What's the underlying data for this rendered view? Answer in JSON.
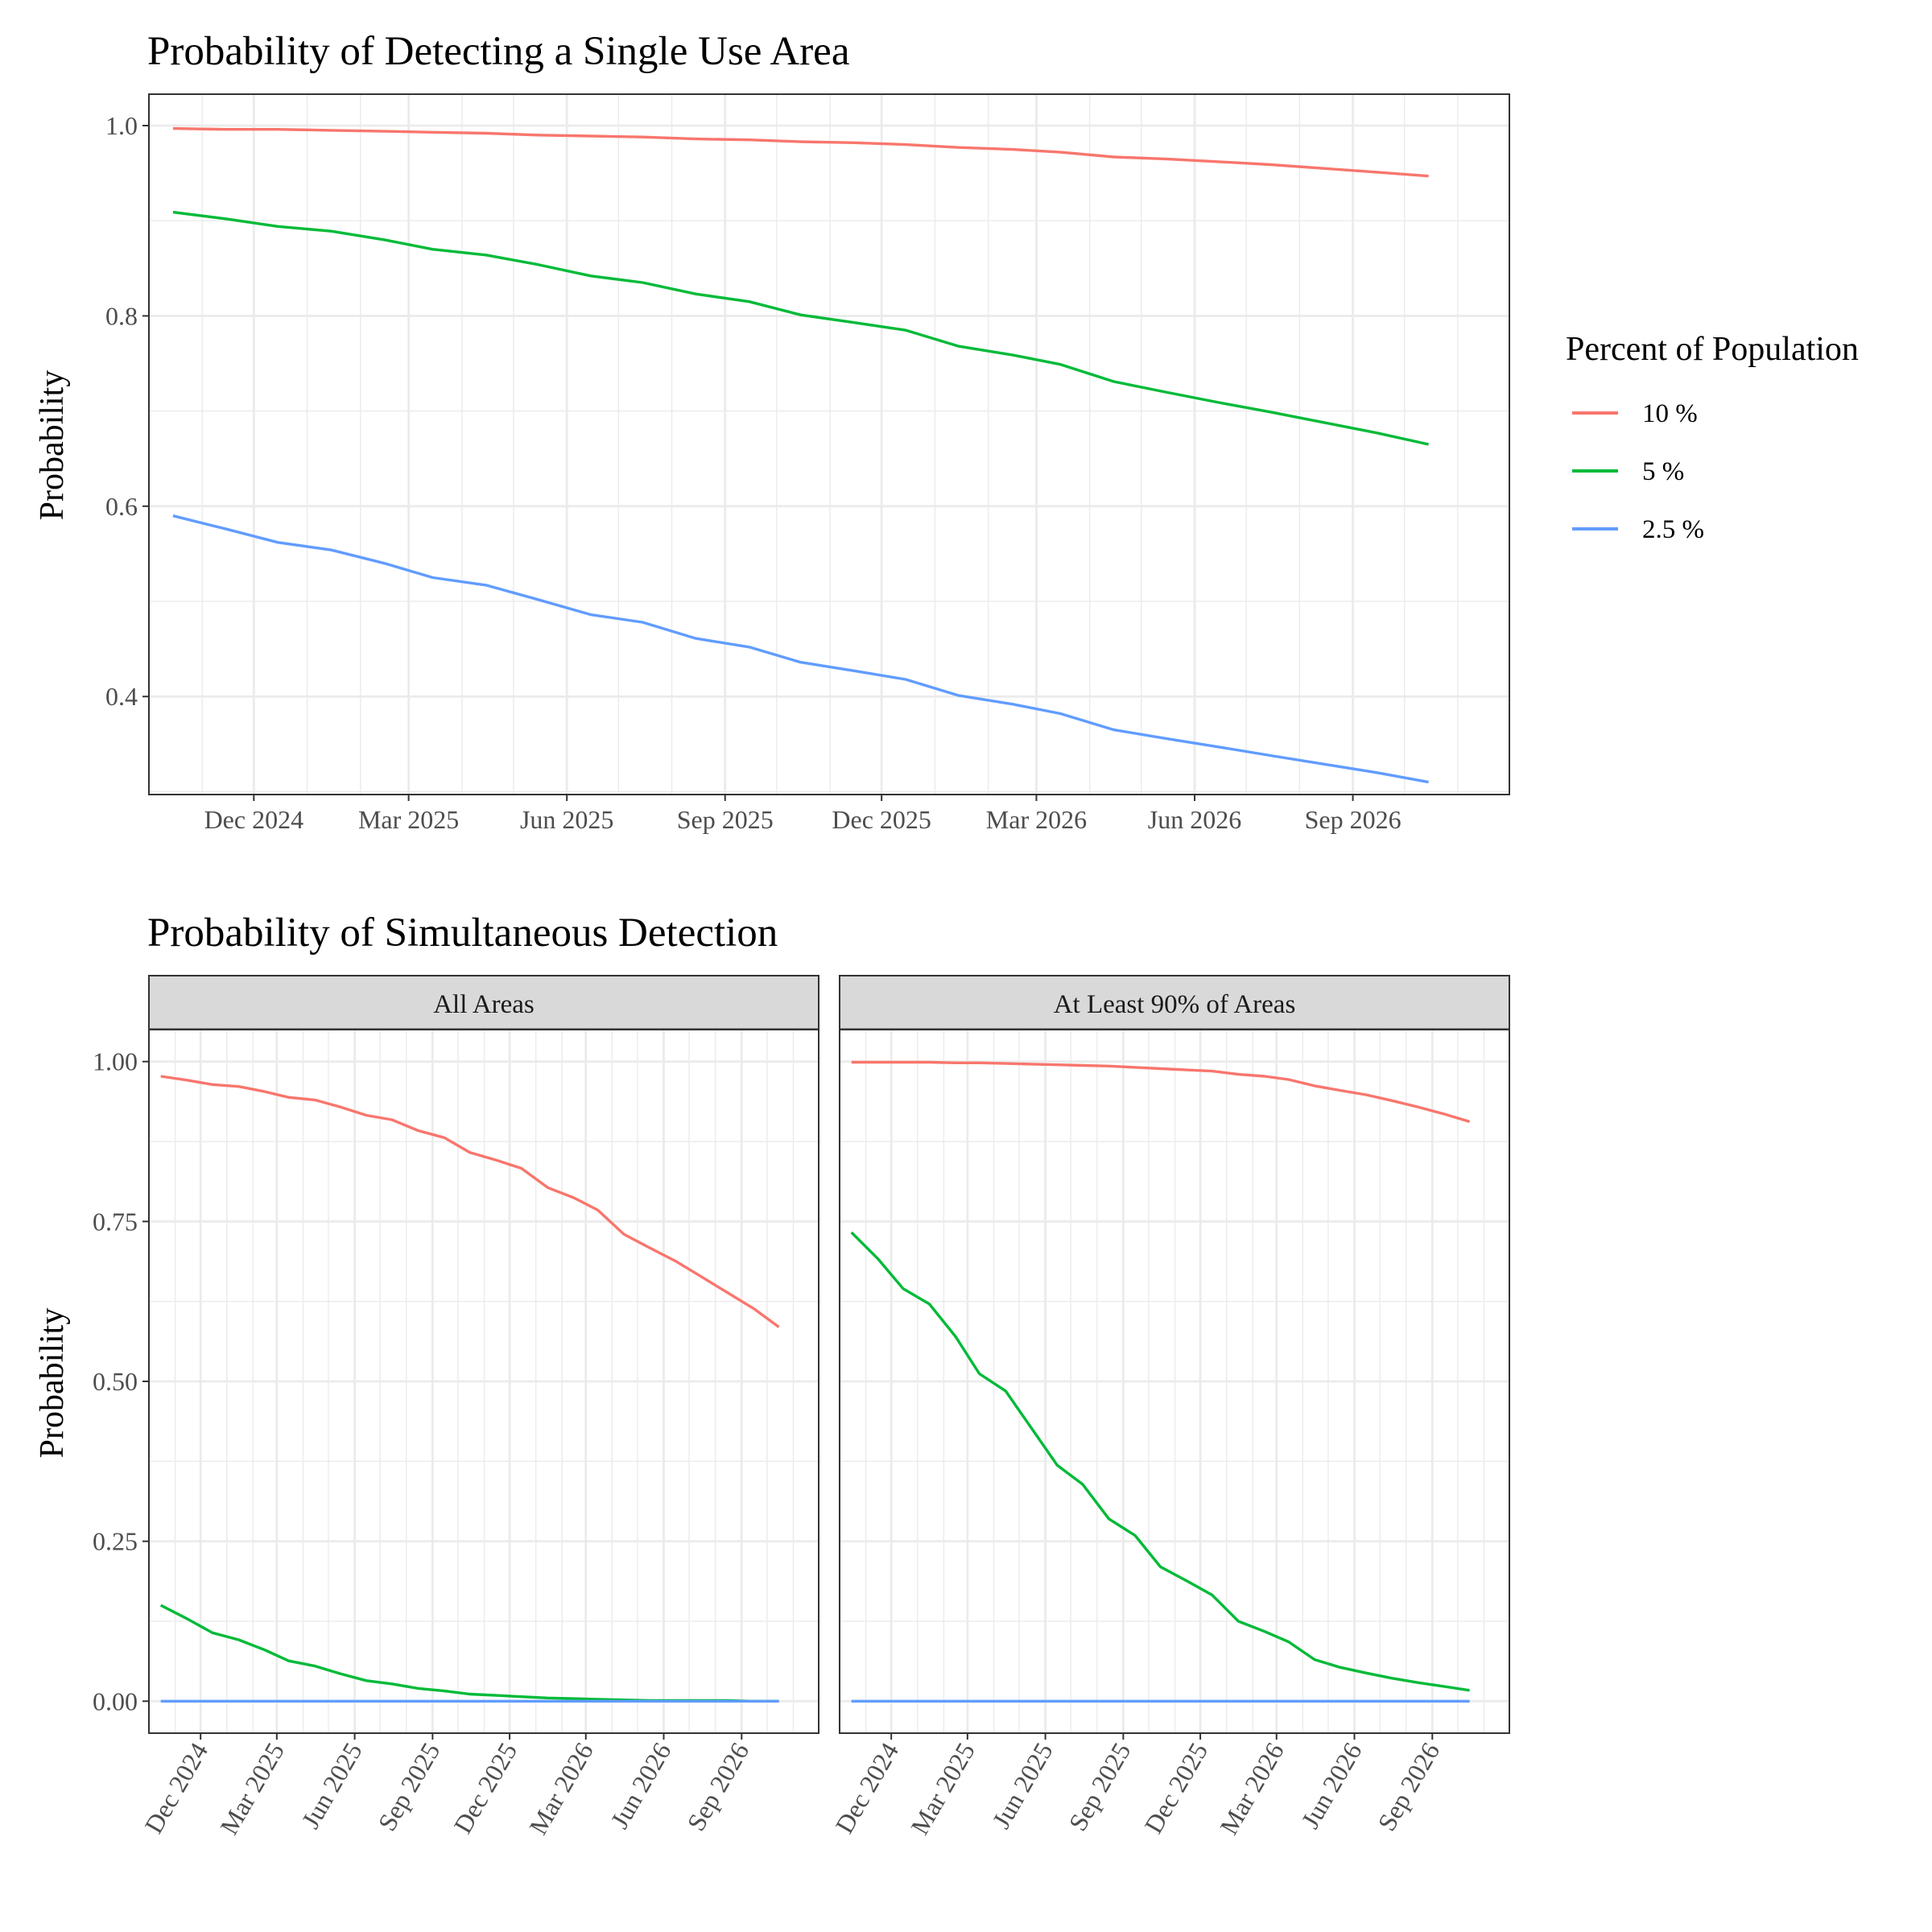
{
  "legend": {
    "title": "Percent of Population",
    "placement": "right",
    "entries": [
      {
        "label": "10 %",
        "color": "#F8766D"
      },
      {
        "label": "5 %",
        "color": "#00BA38"
      },
      {
        "label": "2.5 %",
        "color": "#619CFF"
      }
    ]
  },
  "chart_data": [
    {
      "type": "line",
      "title": "Probability of Detecting a Single Use Area",
      "xlabel": "",
      "ylabel": "Probability",
      "x_tick_labels": [
        "Dec 2024",
        "Mar 2025",
        "Jun 2025",
        "Sep 2025",
        "Dec 2025",
        "Mar 2026",
        "Jun 2026",
        "Sep 2026"
      ],
      "y_tick_labels": [
        "0.4",
        "0.6",
        "0.8",
        "1.0"
      ],
      "xlim": [
        "2024-10-01",
        "2026-12-01"
      ],
      "ylim": [
        0.297,
        1.033
      ],
      "grid": true,
      "x": [
        "2024-10-15",
        "2024-11-15",
        "2024-12-15",
        "2025-01-15",
        "2025-02-15",
        "2025-03-15",
        "2025-04-15",
        "2025-05-15",
        "2025-06-15",
        "2025-07-15",
        "2025-08-15",
        "2025-09-15",
        "2025-10-15",
        "2025-11-15",
        "2025-12-15",
        "2026-01-15",
        "2026-02-15",
        "2026-03-15",
        "2026-04-15",
        "2026-05-15",
        "2026-06-15",
        "2026-07-15",
        "2026-08-15",
        "2026-09-15",
        "2026-10-15"
      ],
      "series": [
        {
          "name": "10 %",
          "values": [
            0.997,
            0.996,
            0.996,
            0.995,
            0.994,
            0.993,
            0.992,
            0.99,
            0.989,
            0.988,
            0.986,
            0.985,
            0.983,
            0.982,
            0.98,
            0.977,
            0.975,
            0.972,
            0.967,
            0.965,
            0.962,
            0.959,
            0.955,
            0.951,
            0.947
          ]
        },
        {
          "name": "5 %",
          "values": [
            0.909,
            0.902,
            0.894,
            0.889,
            0.88,
            0.87,
            0.864,
            0.854,
            0.842,
            0.835,
            0.823,
            0.815,
            0.801,
            0.793,
            0.785,
            0.768,
            0.759,
            0.749,
            0.731,
            0.72,
            0.709,
            0.699,
            0.688,
            0.677,
            0.665
          ]
        },
        {
          "name": "2.5 %",
          "values": [
            0.59,
            0.576,
            0.562,
            0.554,
            0.54,
            0.525,
            0.517,
            0.502,
            0.486,
            0.478,
            0.461,
            0.452,
            0.436,
            0.427,
            0.418,
            0.401,
            0.392,
            0.382,
            0.365,
            0.356,
            0.347,
            0.338,
            0.329,
            0.32,
            0.31
          ]
        }
      ]
    },
    {
      "type": "line",
      "title": "Probability of Simultaneous Detection",
      "panel": "All Areas",
      "xlabel": "",
      "ylabel": "Probability",
      "x_tick_labels": [
        "Dec 2024",
        "Mar 2025",
        "Jun 2025",
        "Sep 2025",
        "Dec 2025",
        "Mar 2026",
        "Jun 2026",
        "Sep 2026"
      ],
      "y_tick_labels": [
        "0.00",
        "0.25",
        "0.50",
        "0.75",
        "1.00"
      ],
      "xlim": [
        "2024-10-01",
        "2026-12-01"
      ],
      "ylim": [
        -0.05,
        1.05
      ],
      "grid": true,
      "x": [
        "2024-10-15",
        "2024-11-15",
        "2024-12-15",
        "2025-01-15",
        "2025-02-15",
        "2025-03-15",
        "2025-04-15",
        "2025-05-15",
        "2025-06-15",
        "2025-07-15",
        "2025-08-15",
        "2025-09-15",
        "2025-10-15",
        "2025-11-15",
        "2025-12-15",
        "2026-01-15",
        "2026-02-15",
        "2026-03-15",
        "2026-04-15",
        "2026-05-15",
        "2026-06-15",
        "2026-07-15",
        "2026-08-15",
        "2026-09-15",
        "2026-10-15"
      ],
      "series": [
        {
          "name": "10 %",
          "values": [
            0.977,
            0.971,
            0.964,
            0.961,
            0.953,
            0.944,
            0.94,
            0.929,
            0.916,
            0.909,
            0.892,
            0.881,
            0.858,
            0.846,
            0.833,
            0.803,
            0.787,
            0.768,
            0.73,
            0.709,
            0.688,
            0.664,
            0.639,
            0.614,
            0.585
          ]
        },
        {
          "name": "5 %",
          "values": [
            0.15,
            0.129,
            0.107,
            0.096,
            0.08,
            0.063,
            0.055,
            0.043,
            0.032,
            0.027,
            0.02,
            0.016,
            0.011,
            0.009,
            0.007,
            0.005,
            0.004,
            0.003,
            0.002,
            0.001,
            0.001,
            0.001,
            0.001,
            0.0,
            0.0
          ]
        },
        {
          "name": "2.5 %",
          "values": [
            0,
            0,
            0,
            0,
            0,
            0,
            0,
            0,
            0,
            0,
            0,
            0,
            0,
            0,
            0,
            0,
            0,
            0,
            0,
            0,
            0,
            0,
            0,
            0,
            0
          ]
        }
      ]
    },
    {
      "type": "line",
      "title": "Probability of Simultaneous Detection",
      "panel": "At Least 90% of Areas",
      "xlabel": "",
      "ylabel": "Probability",
      "x_tick_labels": [
        "Dec 2024",
        "Mar 2025",
        "Jun 2025",
        "Sep 2025",
        "Dec 2025",
        "Mar 2026",
        "Jun 2026",
        "Sep 2026"
      ],
      "y_tick_labels": [
        "0.00",
        "0.25",
        "0.50",
        "0.75",
        "1.00"
      ],
      "xlim": [
        "2024-10-01",
        "2026-12-01"
      ],
      "ylim": [
        -0.05,
        1.05
      ],
      "grid": true,
      "x": [
        "2024-10-15",
        "2024-11-15",
        "2024-12-15",
        "2025-01-15",
        "2025-02-15",
        "2025-03-15",
        "2025-04-15",
        "2025-05-15",
        "2025-06-15",
        "2025-07-15",
        "2025-08-15",
        "2025-09-15",
        "2025-10-15",
        "2025-11-15",
        "2025-12-15",
        "2026-01-15",
        "2026-02-15",
        "2026-03-15",
        "2026-04-15",
        "2026-05-15",
        "2026-06-15",
        "2026-07-15",
        "2026-08-15",
        "2026-09-15",
        "2026-10-15"
      ],
      "series": [
        {
          "name": "10 %",
          "values": [
            0.999,
            0.999,
            0.999,
            0.999,
            0.998,
            0.998,
            0.997,
            0.996,
            0.995,
            0.994,
            0.993,
            0.991,
            0.989,
            0.987,
            0.985,
            0.98,
            0.977,
            0.972,
            0.962,
            0.955,
            0.948,
            0.939,
            0.929,
            0.918,
            0.906
          ]
        },
        {
          "name": "5 %",
          "values": [
            0.733,
            0.692,
            0.645,
            0.621,
            0.57,
            0.512,
            0.485,
            0.428,
            0.369,
            0.339,
            0.285,
            0.259,
            0.21,
            0.188,
            0.166,
            0.125,
            0.109,
            0.093,
            0.065,
            0.053,
            0.044,
            0.036,
            0.029,
            0.023,
            0.017
          ]
        },
        {
          "name": "2.5 %",
          "values": [
            0,
            0,
            0,
            0,
            0,
            0,
            0,
            0,
            0,
            0,
            0,
            0,
            0,
            0,
            0,
            0,
            0,
            0,
            0,
            0,
            0,
            0,
            0,
            0,
            0
          ]
        }
      ]
    }
  ]
}
